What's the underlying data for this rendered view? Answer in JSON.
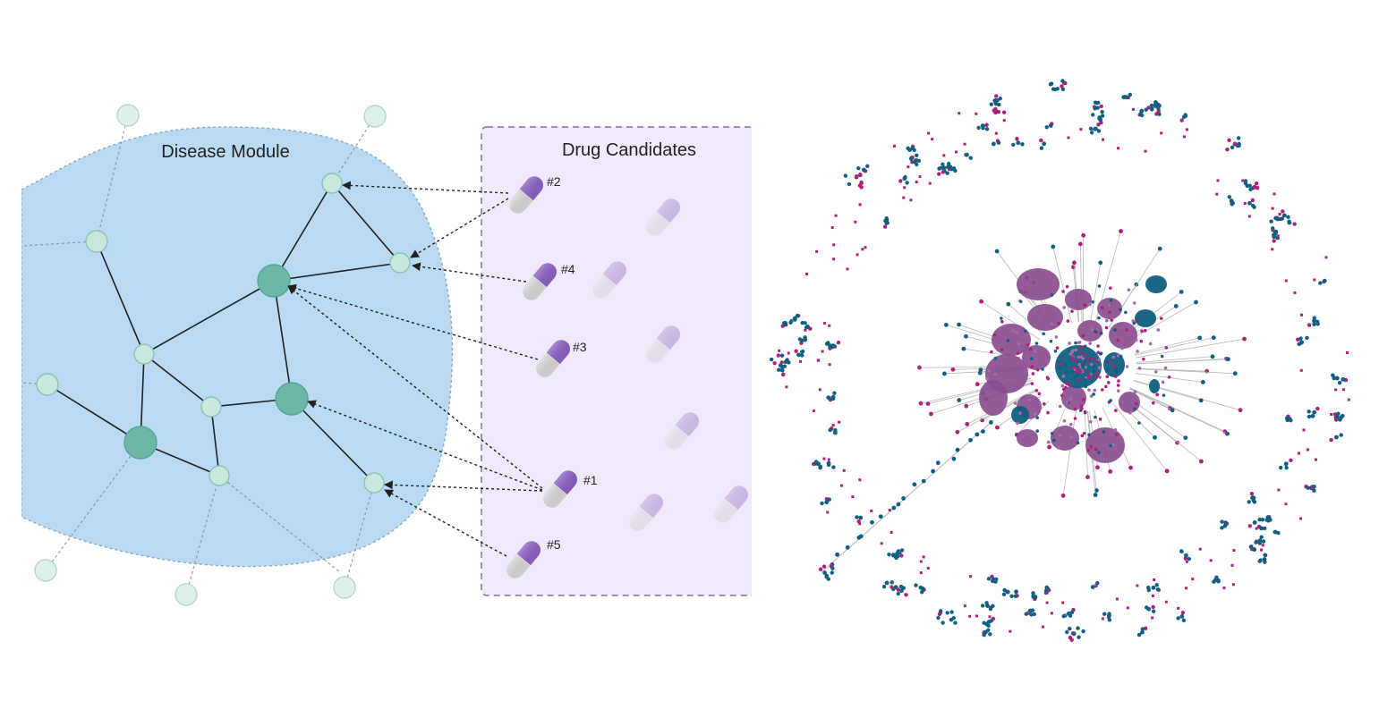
{
  "diagram": {
    "disease_module": {
      "label": "Disease Module",
      "fill_color": "#b9daf2",
      "border_color": "#8aaac4"
    },
    "drug_candidates": {
      "label": "Drug Candidates",
      "fill_color": "#f0e9fb",
      "border_color": "#8a6aa8",
      "ranked": [
        {
          "label": "#1"
        },
        {
          "label": "#2"
        },
        {
          "label": "#3"
        },
        {
          "label": "#4"
        },
        {
          "label": "#5"
        }
      ]
    },
    "colors": {
      "node_light": "#c8e8dc",
      "node_dark": "#6cb8a8",
      "node_outer": "#ddf0eb",
      "pill_purple": "#8b60c4",
      "pill_gray": "#d9d9d9",
      "network_purple": "#8a4d8f",
      "network_teal": "#0f5f80",
      "network_magenta": "#b0207a"
    }
  }
}
